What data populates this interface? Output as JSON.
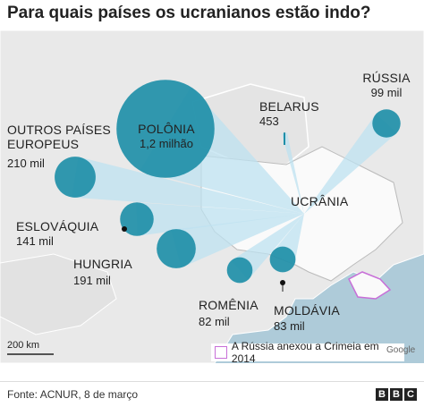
{
  "title": "Para quais países os ucranianos estão indo?",
  "origin": "UCRÂNIA",
  "destinations": [
    {
      "name": "POLÔNIA",
      "value": 1200000,
      "value_label": "1,2 milhão"
    },
    {
      "name": "RÚSSIA",
      "value": 99000,
      "value_label": "99 mil"
    },
    {
      "name": "BELARUS",
      "value": 453
    },
    {
      "name_lines": [
        "OUTROS PAÍSES",
        "EUROPEUS"
      ],
      "value": 210000,
      "value_label": "210 mil"
    },
    {
      "name": "ESLOVÁQUIA",
      "value": 141000,
      "value_label": "141 mil"
    },
    {
      "name": "HUNGRIA",
      "value": 191000,
      "value_label": "191 mil"
    },
    {
      "name": "ROMÊNIA",
      "value": 82000,
      "value_label": "82 mil"
    },
    {
      "name": "MOLDÁVIA",
      "value": 83000,
      "value_label": "83 mil"
    }
  ],
  "scale": "200 km",
  "legend": "A Rússia anexou a Crimeia em 2014",
  "attribution": "Google",
  "source": "Fonte: ACNUR, 8 de março",
  "logo": [
    "B",
    "B",
    "C"
  ]
}
